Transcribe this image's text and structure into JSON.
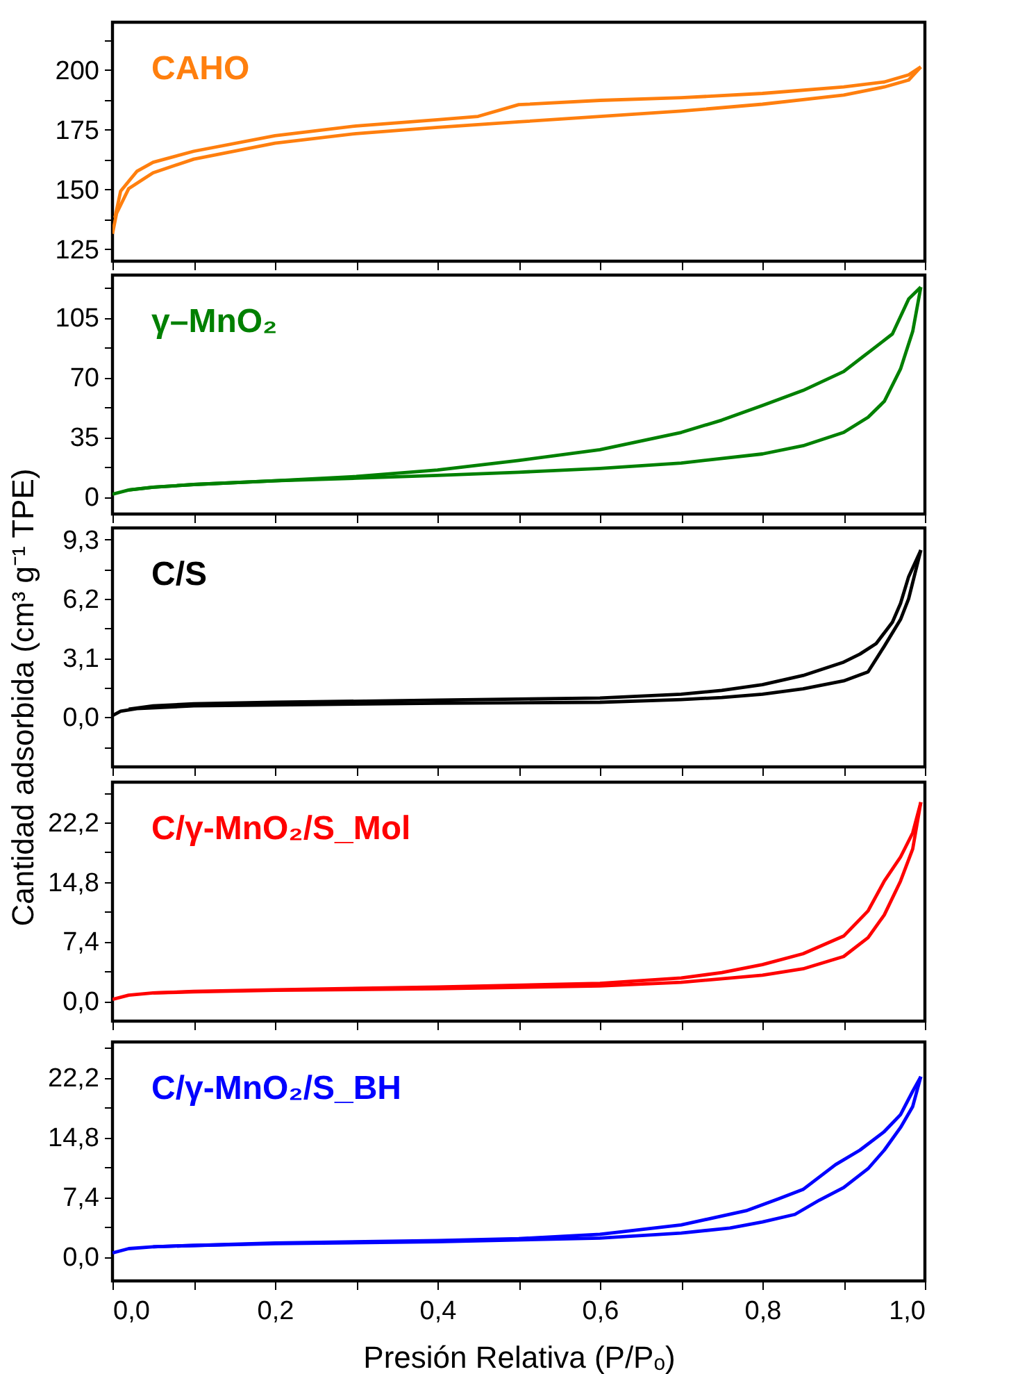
{
  "chart_data": [
    {
      "type": "line",
      "tick_labels": "y",
      "xlim": [
        0,
        1
      ],
      "ylim": [
        120,
        220
      ],
      "xticks": [
        {
          "value": 0,
          "label": null
        },
        {
          "value": 0.1,
          "label": null
        },
        {
          "value": 0.2,
          "label": null
        },
        {
          "value": 0.3,
          "label": null
        },
        {
          "value": 0.4,
          "label": null
        },
        {
          "value": 0.5,
          "label": null
        },
        {
          "value": 0.6,
          "label": null
        },
        {
          "value": 0.7,
          "label": null
        },
        {
          "value": 0.8,
          "label": null
        },
        {
          "value": 0.9,
          "label": null
        },
        {
          "value": 1,
          "label": null
        }
      ],
      "yticks": [
        125,
        {
          "value": 137.5,
          "label": null
        },
        150,
        {
          "value": 162.5,
          "label": null
        },
        175,
        {
          "value": 187.5,
          "label": null
        },
        200,
        {
          "value": 212.5,
          "label": null
        }
      ],
      "series": [
        {
          "name": "CAHO",
          "color": "#ff7f0e",
          "x": [
            0,
            0.005,
            0.02,
            0.05,
            0.1,
            0.2,
            0.3,
            0.4,
            0.5,
            0.6,
            0.7,
            0.8,
            0.9,
            0.95,
            0.98,
            0.995
          ],
          "values": [
            131.5,
            140,
            150.4,
            157,
            162.7,
            169.4,
            173.4,
            176,
            178.3,
            180.6,
            182.8,
            185.7,
            189.5,
            192.9,
            195.8,
            201.3
          ]
        },
        {
          "color": "#ff7f0e",
          "x": [
            0.995,
            0.98,
            0.95,
            0.9,
            0.8,
            0.7,
            0.6,
            0.5,
            0.45,
            0.4,
            0.3,
            0.2,
            0.1,
            0.05,
            0.03,
            0.01,
            0.003
          ],
          "values": [
            201.3,
            198,
            195,
            192.9,
            190.2,
            188.4,
            187.3,
            185.5,
            180.6,
            179.2,
            176.6,
            172.5,
            166,
            161.4,
            157.6,
            149.3,
            138.2
          ]
        }
      ]
    },
    {
      "type": "line",
      "tick_labels": "y",
      "xlim": [
        0,
        1
      ],
      "ylim": [
        -10,
        130
      ],
      "xticks": [
        {
          "value": 0,
          "label": null
        },
        {
          "value": 0.1,
          "label": null
        },
        {
          "value": 0.2,
          "label": null
        },
        {
          "value": 0.3,
          "label": null
        },
        {
          "value": 0.4,
          "label": null
        },
        {
          "value": 0.5,
          "label": null
        },
        {
          "value": 0.6,
          "label": null
        },
        {
          "value": 0.7,
          "label": null
        },
        {
          "value": 0.8,
          "label": null
        },
        {
          "value": 0.9,
          "label": null
        },
        {
          "value": 1,
          "label": null
        }
      ],
      "yticks": [
        0,
        {
          "value": 17.5,
          "label": null
        },
        35,
        {
          "value": 52.5,
          "label": null
        },
        70,
        {
          "value": 87.5,
          "label": null
        },
        105,
        {
          "value": 122.5,
          "label": null
        }
      ],
      "series": [
        {
          "name": "γ–MnO₂",
          "color": "#008000",
          "x": [
            0,
            0.02,
            0.05,
            0.1,
            0.2,
            0.3,
            0.4,
            0.5,
            0.6,
            0.7,
            0.8,
            0.85,
            0.9,
            0.93,
            0.95,
            0.97,
            0.985,
            0.995
          ],
          "values": [
            1.6,
            4.1,
            5.7,
            7.3,
            9.5,
            11,
            12.6,
            14.5,
            16.7,
            19.9,
            25.2,
            30,
            37.8,
            46.7,
            56,
            75,
            97,
            123
          ]
        },
        {
          "color": "#008000",
          "x": [
            0.995,
            0.98,
            0.96,
            0.93,
            0.9,
            0.85,
            0.8,
            0.75,
            0.7,
            0.6,
            0.5,
            0.4,
            0.3,
            0.2,
            0.1,
            0.05,
            0.02
          ],
          "values": [
            123,
            116,
            95.5,
            84.5,
            73.5,
            62.4,
            53.6,
            45,
            37.8,
            27.7,
            21.4,
            15.8,
            12,
            9.5,
            7.3,
            5.7,
            4.1
          ]
        }
      ]
    },
    {
      "type": "line",
      "tick_labels": "y",
      "xlim": [
        0,
        1
      ],
      "ylim": [
        -2.6,
        9.9
      ],
      "ylabel": "Cantidad adsorbida (cm³ g⁻¹ TPE)",
      "xticks": [
        {
          "value": 0,
          "label": null
        },
        {
          "value": 0.1,
          "label": null
        },
        {
          "value": 0.2,
          "label": null
        },
        {
          "value": 0.3,
          "label": null
        },
        {
          "value": 0.4,
          "label": null
        },
        {
          "value": 0.5,
          "label": null
        },
        {
          "value": 0.6,
          "label": null
        },
        {
          "value": 0.7,
          "label": null
        },
        {
          "value": 0.8,
          "label": null
        },
        {
          "value": 0.9,
          "label": null
        },
        {
          "value": 1,
          "label": null
        }
      ],
      "yticks": [
        {
          "value": -1.55,
          "label": null
        },
        {
          "value": 0,
          "label": "0,0"
        },
        {
          "value": 1.55,
          "label": null
        },
        {
          "value": 3.1,
          "label": "3,1"
        },
        {
          "value": 4.65,
          "label": null
        },
        {
          "value": 6.2,
          "label": "6,2"
        },
        {
          "value": 7.75,
          "label": null
        },
        {
          "value": 9.3,
          "label": "9,3"
        }
      ],
      "series": [
        {
          "name": "C/S",
          "color": "#000000",
          "x": [
            0,
            0.01,
            0.03,
            0.1,
            0.2,
            0.4,
            0.6,
            0.7,
            0.75,
            0.8,
            0.85,
            0.9,
            0.93,
            0.95,
            0.97,
            0.98,
            0.995
          ],
          "values": [
            0.08,
            0.31,
            0.45,
            0.59,
            0.64,
            0.73,
            0.78,
            0.92,
            1.03,
            1.2,
            1.48,
            1.9,
            2.37,
            3.71,
            5.11,
            6.2,
            8.74
          ]
        },
        {
          "color": "#000000",
          "x": [
            0.995,
            0.98,
            0.97,
            0.96,
            0.94,
            0.92,
            0.9,
            0.85,
            0.8,
            0.75,
            0.7,
            0.6,
            0.4,
            0.2,
            0.1,
            0.05,
            0.02
          ],
          "values": [
            8.74,
            7.35,
            5.95,
            4.97,
            3.85,
            3.3,
            2.88,
            2.18,
            1.7,
            1.4,
            1.2,
            1.0,
            0.89,
            0.78,
            0.7,
            0.59,
            0.42
          ]
        }
      ]
    },
    {
      "type": "line",
      "tick_labels": "y",
      "xlim": [
        0,
        1
      ],
      "ylim": [
        -2.5,
        27.2
      ],
      "xticks": [
        {
          "value": 0,
          "label": null
        },
        {
          "value": 0.1,
          "label": null
        },
        {
          "value": 0.2,
          "label": null
        },
        {
          "value": 0.3,
          "label": null
        },
        {
          "value": 0.4,
          "label": null
        },
        {
          "value": 0.5,
          "label": null
        },
        {
          "value": 0.6,
          "label": null
        },
        {
          "value": 0.7,
          "label": null
        },
        {
          "value": 0.8,
          "label": null
        },
        {
          "value": 0.9,
          "label": null
        },
        {
          "value": 1,
          "label": null
        }
      ],
      "yticks": [
        {
          "value": 0,
          "label": "0,0"
        },
        {
          "value": 3.7,
          "label": null
        },
        {
          "value": 7.4,
          "label": "7,4"
        },
        {
          "value": 11.1,
          "label": null
        },
        {
          "value": 14.8,
          "label": "14,8"
        },
        {
          "value": 18.5,
          "label": null
        },
        {
          "value": 22.2,
          "label": "22,2"
        },
        {
          "value": 25.9,
          "label": null
        }
      ],
      "series": [
        {
          "name": "C/γ-MnO₂/S_Mol",
          "color": "#ff0000",
          "x": [
            0,
            0.02,
            0.05,
            0.1,
            0.2,
            0.4,
            0.6,
            0.7,
            0.8,
            0.85,
            0.9,
            0.93,
            0.95,
            0.97,
            0.985,
            0.995
          ],
          "values": [
            0.2,
            0.73,
            1.0,
            1.13,
            1.33,
            1.53,
            1.87,
            2.33,
            3.2,
            4.0,
            5.53,
            7.87,
            10.7,
            14.9,
            18.9,
            24.7
          ]
        },
        {
          "color": "#ff0000",
          "x": [
            0.995,
            0.985,
            0.97,
            0.95,
            0.93,
            0.9,
            0.85,
            0.8,
            0.75,
            0.7,
            0.6,
            0.4,
            0.2,
            0.1,
            0.05
          ],
          "values": [
            24.7,
            20.9,
            17.9,
            14.9,
            11.2,
            8.07,
            5.87,
            4.53,
            3.53,
            2.87,
            2.2,
            1.73,
            1.4,
            1.2,
            1.0
          ]
        }
      ]
    },
    {
      "type": "line",
      "xlim": [
        0,
        1
      ],
      "ylim": [
        -3,
        26.6
      ],
      "xlabel": "Presión Relativa (P/Pₒ)",
      "xticks": [
        {
          "value": 0,
          "label": "0,0"
        },
        {
          "value": 0.1,
          "label": null
        },
        {
          "value": 0.2,
          "label": "0,2"
        },
        {
          "value": 0.3,
          "label": null
        },
        {
          "value": 0.4,
          "label": "0,4"
        },
        {
          "value": 0.5,
          "label": null
        },
        {
          "value": 0.6,
          "label": "0,6"
        },
        {
          "value": 0.7,
          "label": null
        },
        {
          "value": 0.8,
          "label": "0,8"
        },
        {
          "value": 0.9,
          "label": null
        },
        {
          "value": 1,
          "label": "1,0"
        }
      ],
      "yticks": [
        {
          "value": 0,
          "label": "0,0"
        },
        {
          "value": 3.7,
          "label": null
        },
        {
          "value": 7.4,
          "label": "7,4"
        },
        {
          "value": 11.1,
          "label": null
        },
        {
          "value": 14.8,
          "label": "14,8"
        },
        {
          "value": 18.5,
          "label": null
        },
        {
          "value": 22.2,
          "label": "22,2"
        },
        {
          "value": 25.9,
          "label": null
        }
      ],
      "series": [
        {
          "name": "C/γ-MnO₂/S_BH",
          "color": "#0000ff",
          "x": [
            0,
            0.02,
            0.05,
            0.1,
            0.2,
            0.4,
            0.6,
            0.7,
            0.76,
            0.8,
            0.84,
            0.87,
            0.9,
            0.93,
            0.95,
            0.97,
            0.985,
            0.995
          ],
          "values": [
            0.46,
            1.0,
            1.23,
            1.39,
            1.62,
            1.85,
            2.31,
            2.93,
            3.55,
            4.3,
            5.24,
            7.0,
            8.56,
            10.9,
            13.2,
            16,
            18.6,
            22.3
          ]
        },
        {
          "color": "#0000ff",
          "x": [
            0.995,
            0.985,
            0.97,
            0.95,
            0.92,
            0.89,
            0.85,
            0.82,
            0.78,
            0.7,
            0.6,
            0.5,
            0.4,
            0.2,
            0.1,
            0.05
          ],
          "values": [
            22.3,
            20.5,
            17.6,
            15.5,
            13.2,
            11.4,
            8.33,
            7.17,
            5.7,
            3.93,
            2.77,
            2.24,
            2.0,
            1.7,
            1.39,
            1.23
          ]
        }
      ]
    }
  ]
}
